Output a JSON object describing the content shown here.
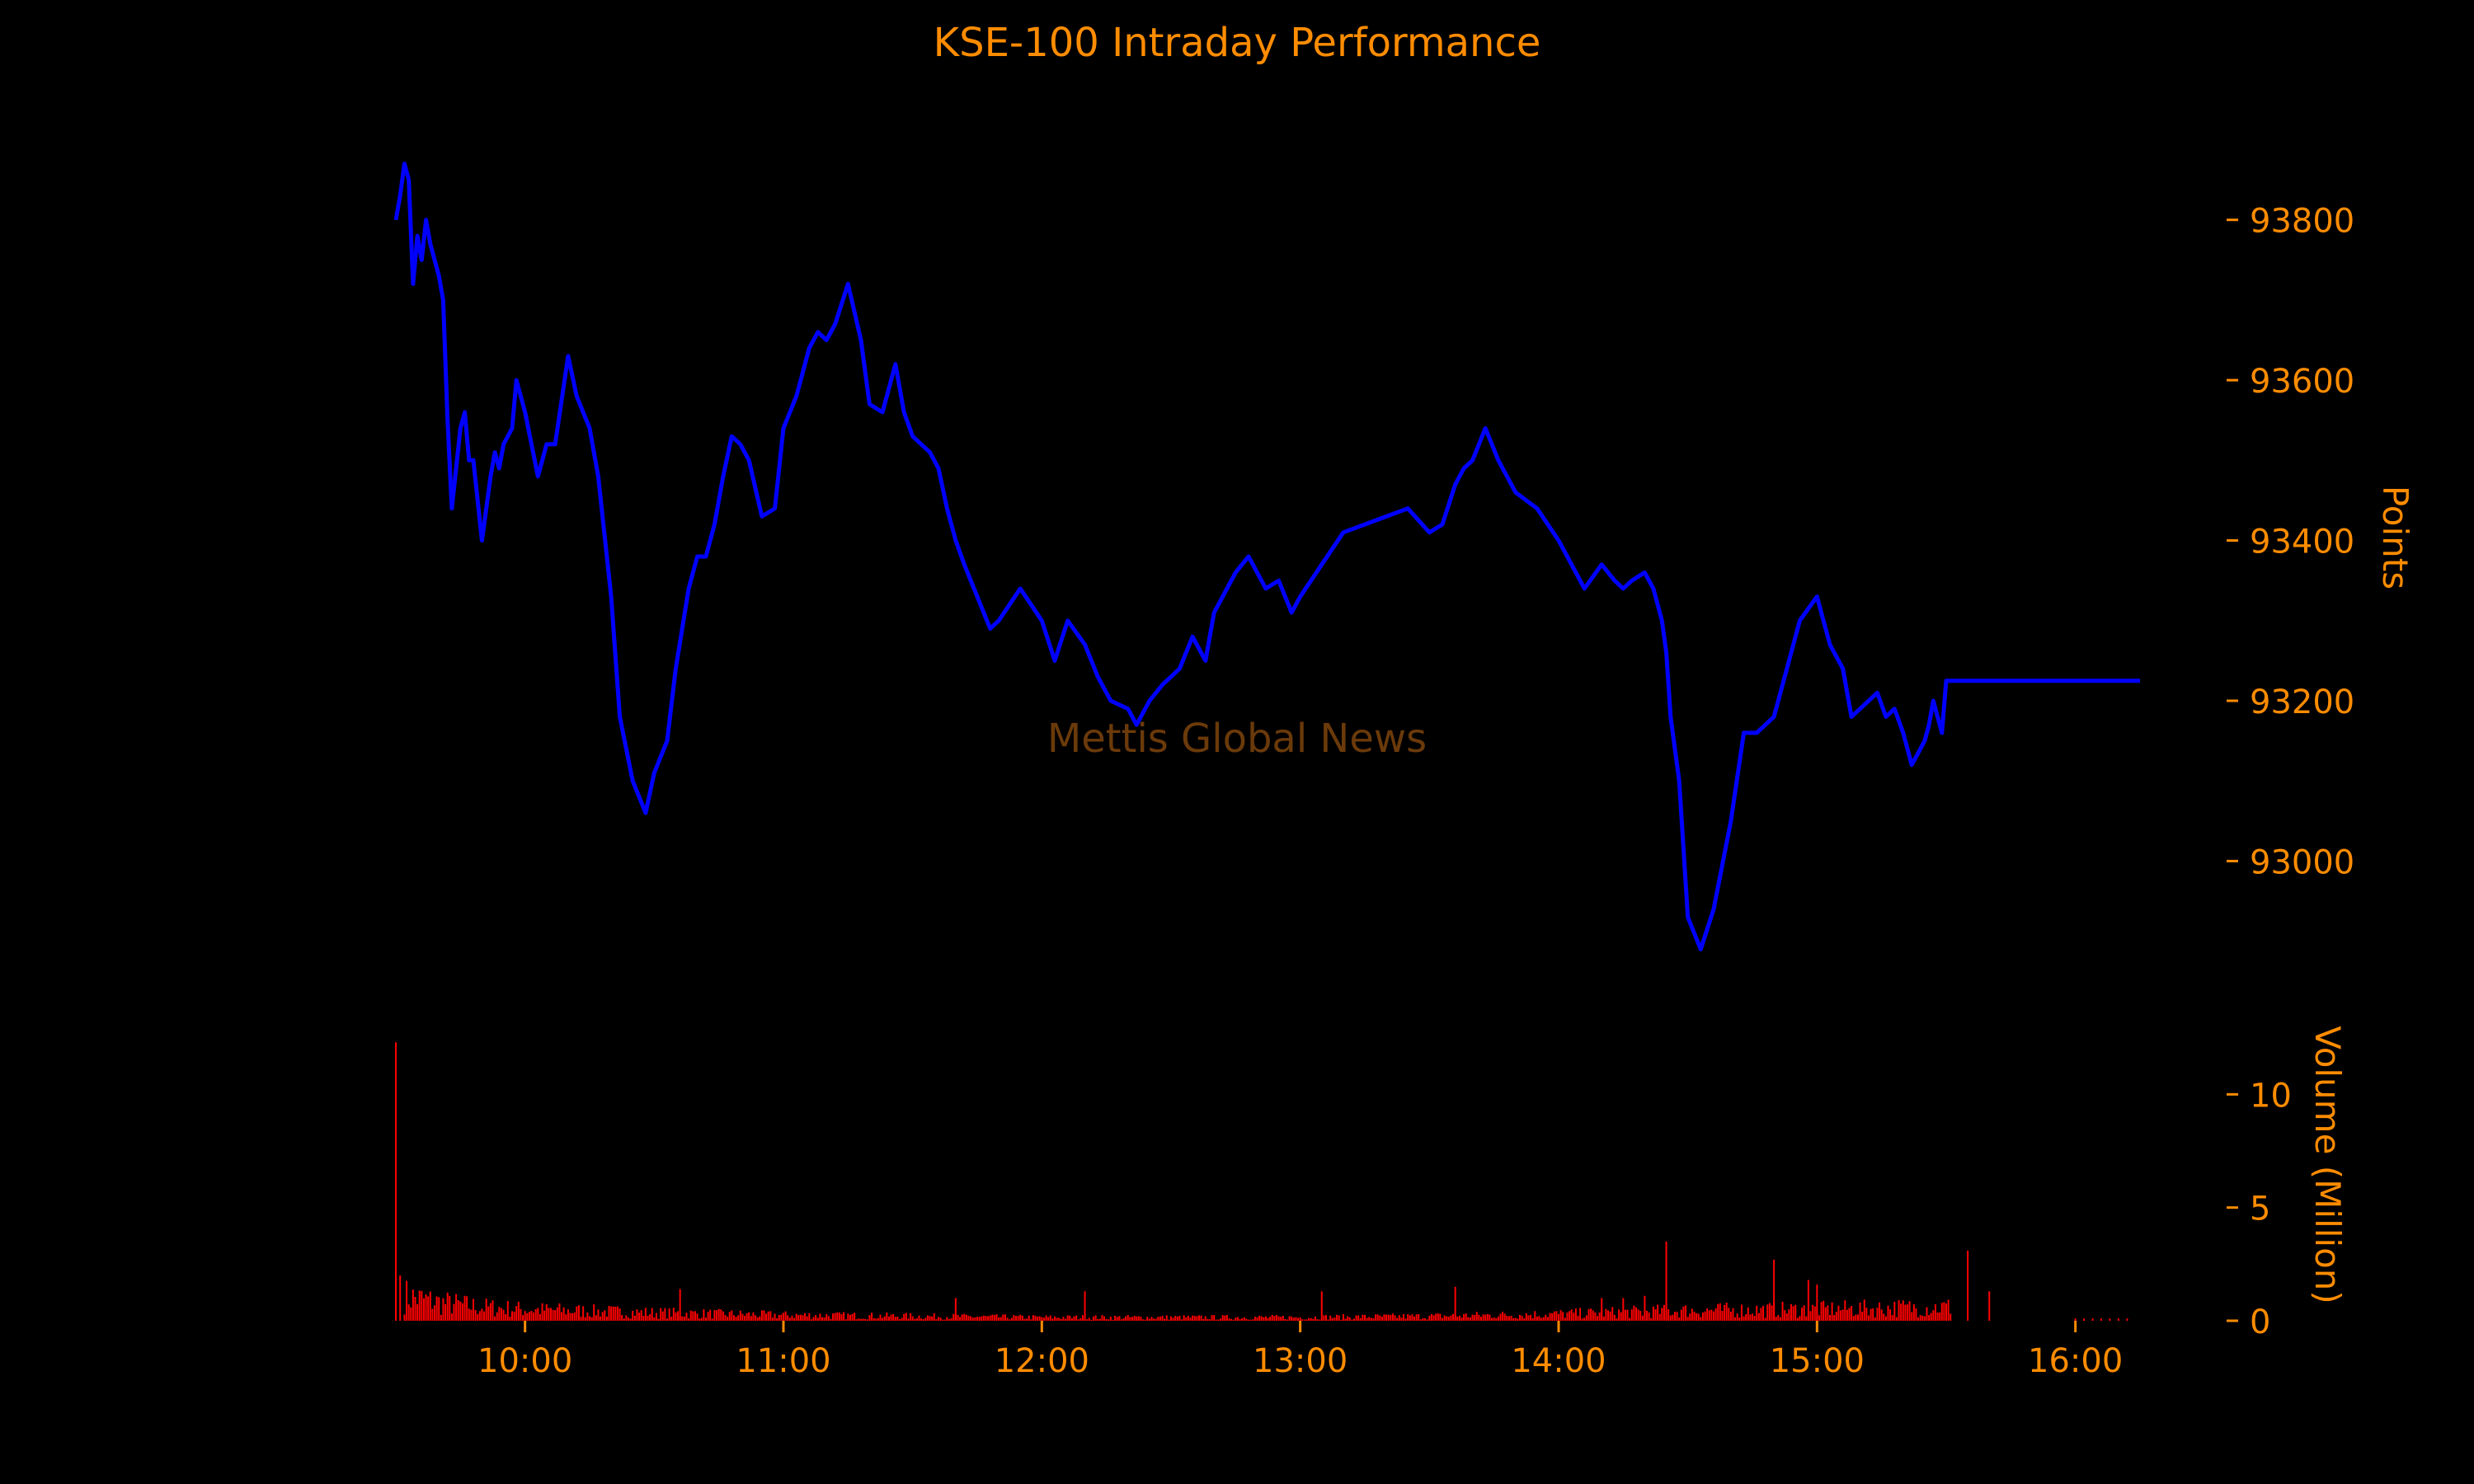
{
  "chart_data": {
    "type": "line",
    "title": "KSE-100 Intraday Performance",
    "watermark": "Mettis Global News",
    "colors": {
      "background": "#000000",
      "text": "#ff8c00",
      "price_line": "#0000ff",
      "volume_bars": "#ff0000",
      "watermark": "#6b3a0a"
    },
    "xlim": [
      "09:30",
      "16:15"
    ],
    "x_ticks": [
      "10:00",
      "11:00",
      "12:00",
      "13:00",
      "14:00",
      "15:00",
      "16:00"
    ],
    "price_panel": {
      "ylabel": "Points",
      "ylim": [
        92840,
        93920
      ],
      "y_ticks": [
        93000,
        93200,
        93400,
        93600,
        93800
      ],
      "series": [
        {
          "x": [
            "09:30",
            "09:31",
            "09:32",
            "09:33",
            "09:34",
            "09:35",
            "09:36",
            "09:37",
            "09:38",
            "09:40",
            "09:41",
            "09:42",
            "09:43",
            "09:45",
            "09:46",
            "09:47",
            "09:48",
            "09:50",
            "09:51",
            "09:52",
            "09:53",
            "09:54",
            "09:55",
            "09:57",
            "09:58",
            "10:00",
            "10:03",
            "10:05",
            "10:07",
            "10:10",
            "10:12",
            "10:15",
            "10:17",
            "10:20",
            "10:22",
            "10:25",
            "10:28",
            "10:30",
            "10:33",
            "10:35",
            "10:38",
            "10:40",
            "10:42",
            "10:44",
            "10:46",
            "10:48",
            "10:50",
            "10:52",
            "10:55",
            "10:58",
            "11:00",
            "11:03",
            "11:06",
            "11:08",
            "11:10",
            "11:12",
            "11:15",
            "11:18",
            "11:20",
            "11:23",
            "11:26",
            "11:28",
            "11:30",
            "11:32",
            "11:34",
            "11:36",
            "11:38",
            "11:40",
            "11:42",
            "11:45",
            "11:48",
            "11:50",
            "11:55",
            "12:00",
            "12:03",
            "12:06",
            "12:10",
            "12:13",
            "12:16",
            "12:20",
            "12:22",
            "12:25",
            "12:28",
            "12:32",
            "12:35",
            "12:38",
            "12:40",
            "12:42",
            "12:45",
            "12:48",
            "12:52",
            "12:55",
            "12:58",
            "13:00",
            "13:05",
            "13:10",
            "13:15",
            "13:20",
            "13:25",
            "13:30",
            "13:33",
            "13:36",
            "13:38",
            "13:40",
            "13:43",
            "13:46",
            "13:50",
            "13:55",
            "14:00",
            "14:03",
            "14:06",
            "14:10",
            "14:13",
            "14:15",
            "14:17",
            "14:20",
            "14:22",
            "14:24",
            "14:25",
            "14:26",
            "14:28",
            "14:30",
            "14:33",
            "14:36",
            "14:40",
            "14:43",
            "14:46",
            "14:50",
            "14:53",
            "14:56",
            "15:00",
            "15:03",
            "15:06",
            "15:08",
            "15:10",
            "15:12",
            "15:14",
            "15:16",
            "15:18",
            "15:20",
            "15:22",
            "15:24",
            "15:25",
            "15:26",
            "15:27",
            "15:29",
            "15:30",
            "15:35",
            "15:40",
            "15:45",
            "15:50",
            "15:55",
            "16:00",
            "16:05",
            "16:10",
            "16:15"
          ],
          "y": [
            93800,
            93830,
            93870,
            93850,
            93720,
            93780,
            93750,
            93800,
            93770,
            93730,
            93700,
            93550,
            93440,
            93540,
            93560,
            93500,
            93500,
            93400,
            93440,
            93480,
            93510,
            93490,
            93520,
            93540,
            93600,
            93560,
            93480,
            93520,
            93520,
            93630,
            93580,
            93540,
            93480,
            93330,
            93180,
            93100,
            93060,
            93110,
            93150,
            93240,
            93340,
            93380,
            93380,
            93420,
            93480,
            93530,
            93520,
            93500,
            93430,
            93440,
            93540,
            93580,
            93640,
            93660,
            93650,
            93670,
            93720,
            93650,
            93570,
            93560,
            93620,
            93560,
            93530,
            93520,
            93510,
            93490,
            93440,
            93400,
            93370,
            93330,
            93290,
            93300,
            93340,
            93300,
            93250,
            93300,
            93270,
            93230,
            93200,
            93190,
            93170,
            93200,
            93220,
            93240,
            93280,
            93250,
            93310,
            93330,
            93360,
            93380,
            93340,
            93350,
            93310,
            93330,
            93370,
            93410,
            93420,
            93430,
            93440,
            93410,
            93420,
            93470,
            93490,
            93500,
            93540,
            93500,
            93460,
            93440,
            93400,
            93370,
            93340,
            93370,
            93350,
            93340,
            93350,
            93360,
            93340,
            93300,
            93260,
            93180,
            93100,
            92930,
            92890,
            92940,
            93050,
            93160,
            93160,
            93180,
            93240,
            93300,
            93330,
            93270,
            93240,
            93180,
            93190,
            93200,
            93210,
            93180,
            93190,
            93160,
            93120,
            93140,
            93150,
            93170,
            93200,
            93160,
            93225,
            93225,
            93225,
            93225,
            93225,
            93225,
            93225,
            93225,
            93225,
            93225
          ]
        }
      ]
    },
    "volume_panel": {
      "ylabel": "Volume (Million)",
      "ylim": [
        0,
        13
      ],
      "y_ticks": [
        0,
        5,
        10
      ],
      "spikes": [
        {
          "x": "09:30",
          "value": 12.3
        },
        {
          "x": "09:31",
          "value": 2.0
        },
        {
          "x": "10:36",
          "value": 1.4
        },
        {
          "x": "11:40",
          "value": 1.0
        },
        {
          "x": "12:10",
          "value": 1.3
        },
        {
          "x": "13:05",
          "value": 1.3
        },
        {
          "x": "13:36",
          "value": 1.5
        },
        {
          "x": "14:10",
          "value": 1.0
        },
        {
          "x": "14:15",
          "value": 1.0
        },
        {
          "x": "14:20",
          "value": 1.1
        },
        {
          "x": "14:25",
          "value": 3.5
        },
        {
          "x": "14:50",
          "value": 2.7
        },
        {
          "x": "14:58",
          "value": 1.8
        },
        {
          "x": "15:00",
          "value": 1.6
        },
        {
          "x": "15:40",
          "value": 1.3
        },
        {
          "x": "15:35",
          "value": 3.1
        }
      ],
      "baseline_profile": [
        {
          "x": "09:32",
          "value": 1.1
        },
        {
          "x": "09:40",
          "value": 0.8
        },
        {
          "x": "09:50",
          "value": 0.6
        },
        {
          "x": "10:00",
          "value": 0.5
        },
        {
          "x": "10:30",
          "value": 0.35
        },
        {
          "x": "11:00",
          "value": 0.25
        },
        {
          "x": "12:00",
          "value": 0.15
        },
        {
          "x": "13:00",
          "value": 0.15
        },
        {
          "x": "13:30",
          "value": 0.2
        },
        {
          "x": "14:00",
          "value": 0.3
        },
        {
          "x": "14:30",
          "value": 0.45
        },
        {
          "x": "15:00",
          "value": 0.5
        },
        {
          "x": "15:30",
          "value": 0.6
        }
      ],
      "end_session": "15:31",
      "late_ticks": {
        "from": "16:00",
        "to": "16:12",
        "value": 0.1
      }
    }
  }
}
